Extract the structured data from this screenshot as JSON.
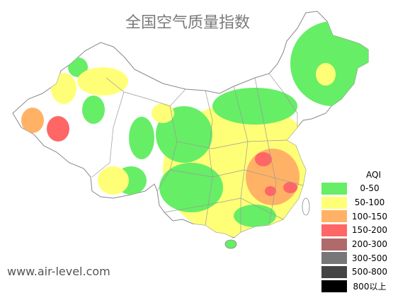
{
  "map": {
    "title": "全国空气质量指数",
    "watermark": "www.air-level.com",
    "colors": {
      "land": "#ffffff",
      "border": "#888888",
      "good": "#66ee66",
      "moderate": "#ffff77",
      "sensitive": "#ffb266",
      "unhealthy": "#ff6666"
    }
  },
  "legend": {
    "title": "AQI",
    "items": [
      {
        "label": "0-50",
        "color": "#66ee66"
      },
      {
        "label": "50-100",
        "color": "#ffff77"
      },
      {
        "label": "100-150",
        "color": "#ffb266"
      },
      {
        "label": "150-200",
        "color": "#ff6666"
      },
      {
        "label": "200-300",
        "color": "#b06a6a"
      },
      {
        "label": "300-500",
        "color": "#777777"
      },
      {
        "label": "500-800",
        "color": "#444444"
      },
      {
        "label": "800以上",
        "color": "#000000"
      }
    ]
  }
}
